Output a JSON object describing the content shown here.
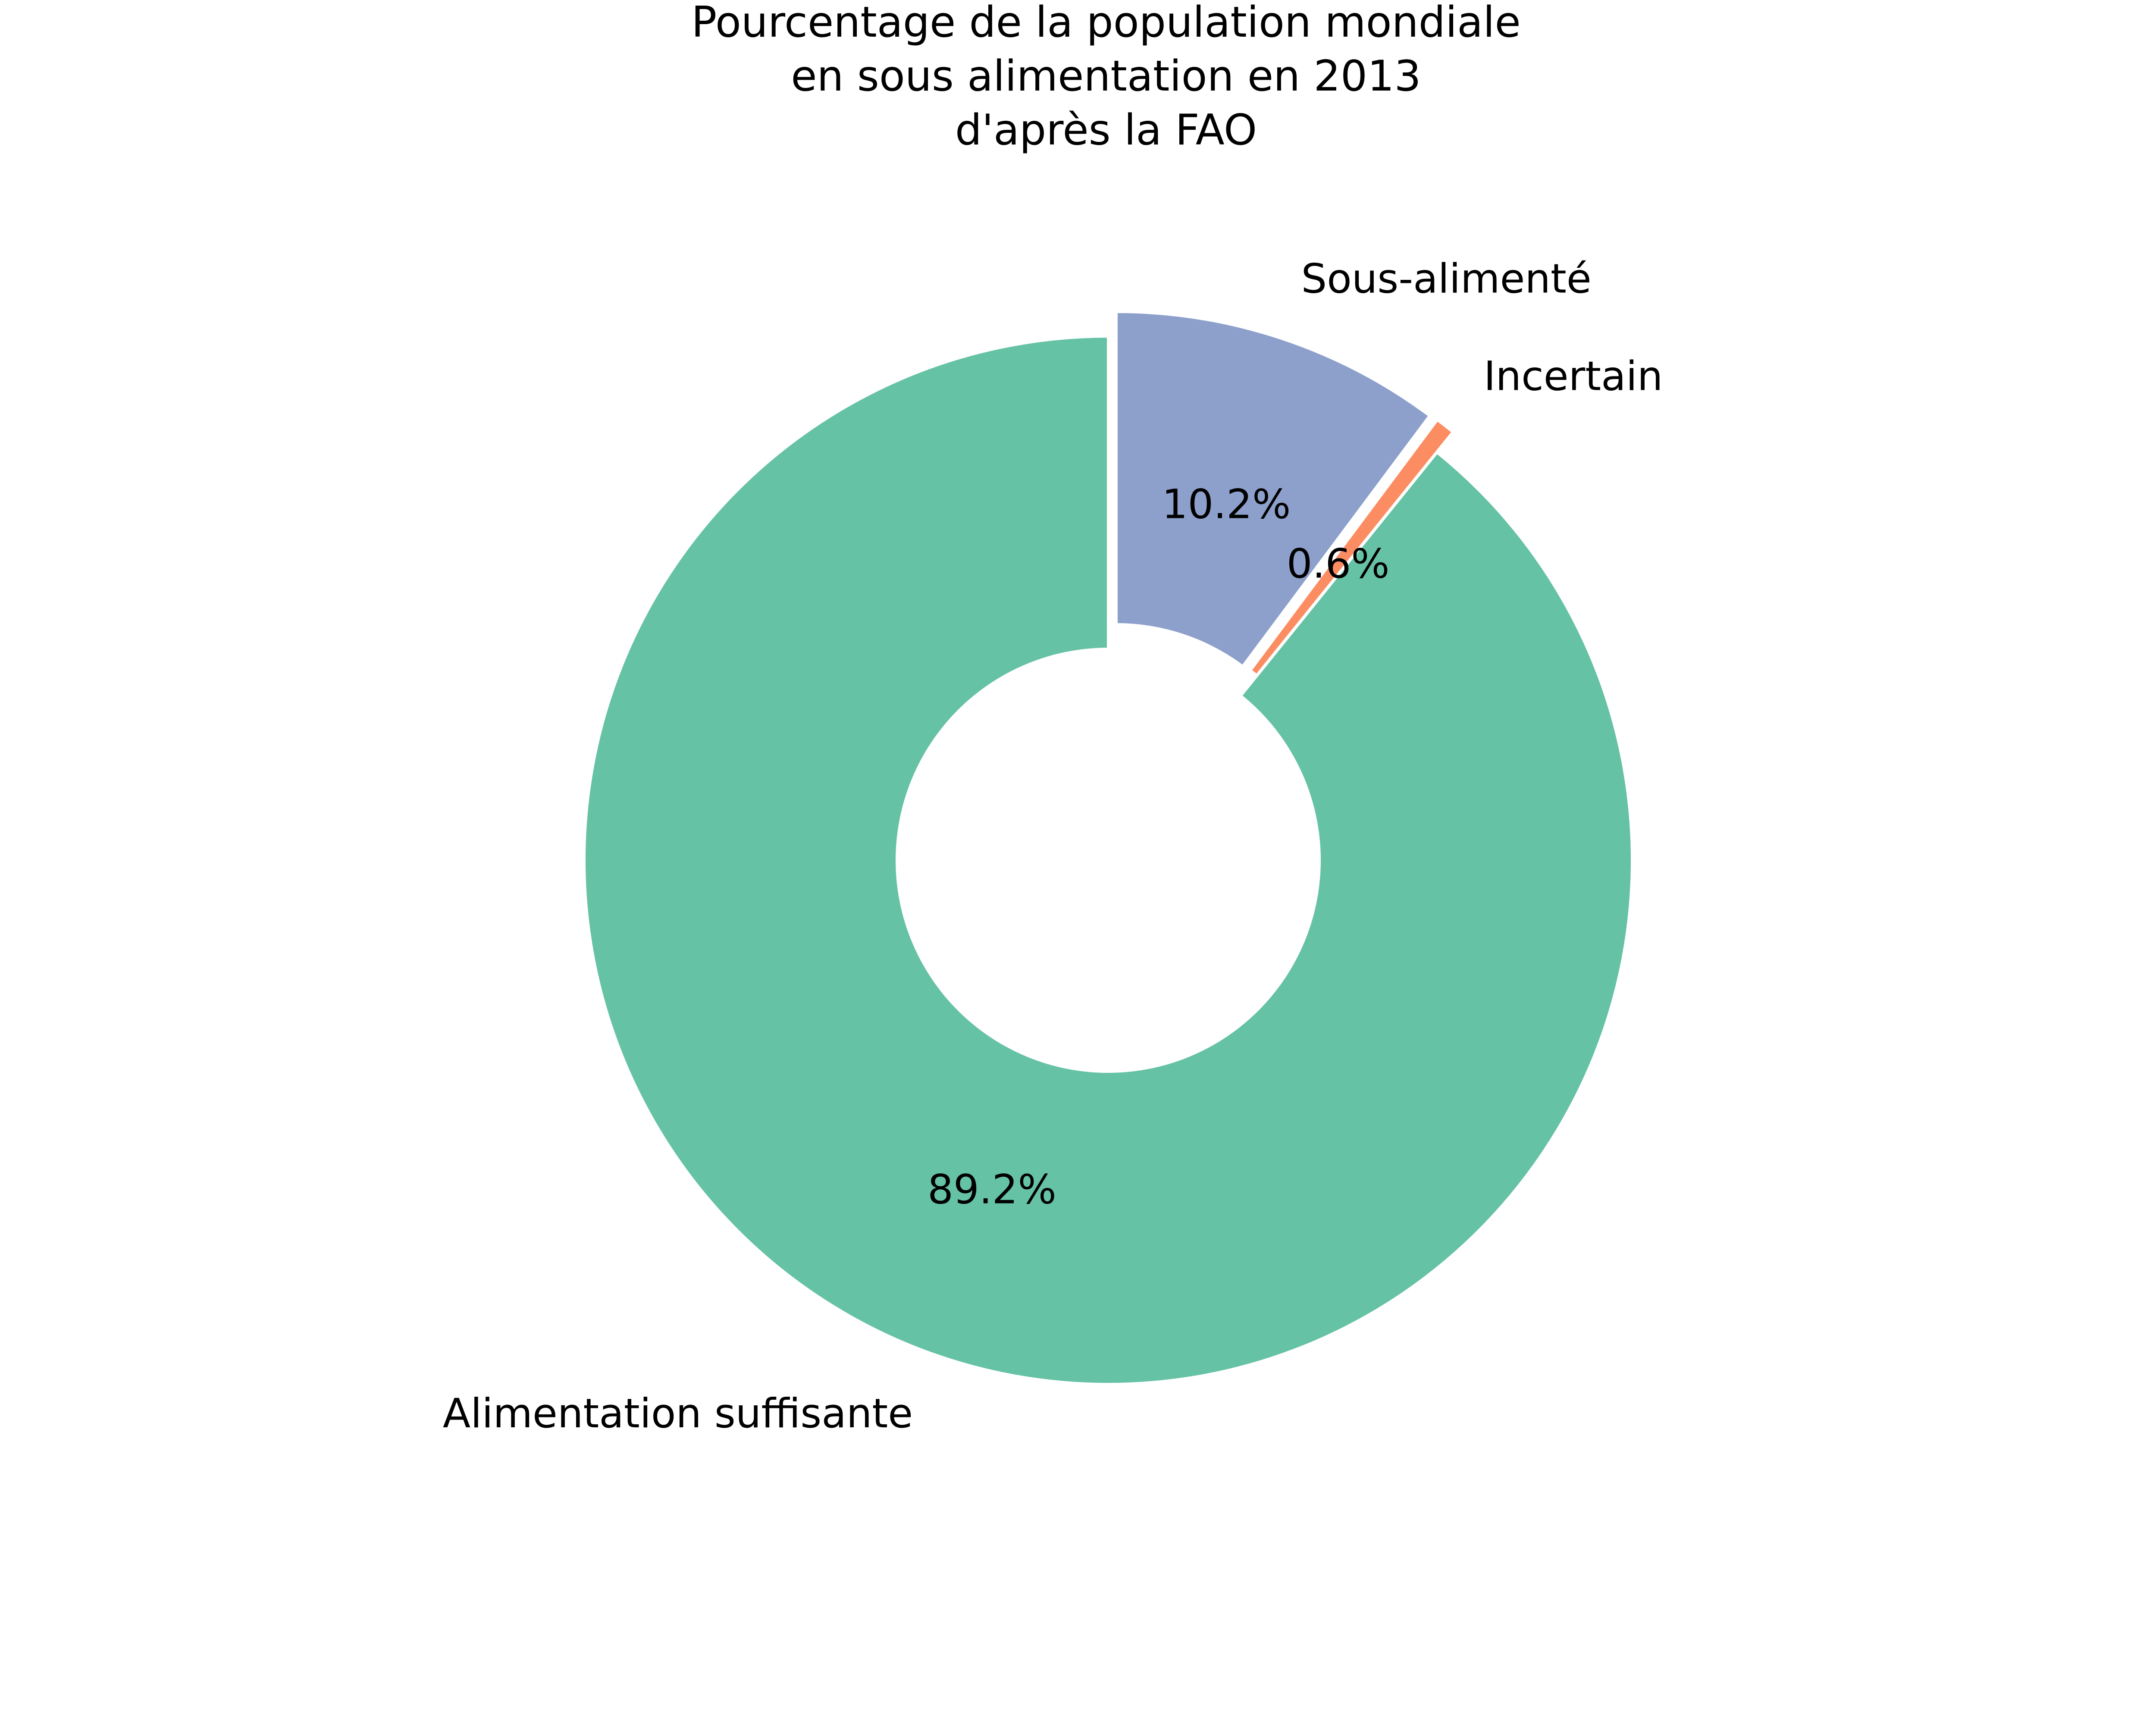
{
  "chart_data": {
    "type": "pie",
    "donut": true,
    "title_lines": [
      "Pourcentage de la population mondiale",
      "en sous alimentation en 2013",
      "d'après la FAO"
    ],
    "categories": [
      "Sous-alimenté",
      "Incertain",
      "Alimentation suffisante"
    ],
    "values": [
      10.2,
      0.6,
      89.2
    ],
    "labels_pct": [
      "10.2%",
      "0.6%",
      "89.2%"
    ],
    "exploded": [
      true,
      true,
      false
    ],
    "colors": [
      "#8da0cb",
      "#fc8d62",
      "#66c2a5"
    ],
    "start_angle": 90,
    "direction": "clockwise",
    "legend": "none"
  }
}
